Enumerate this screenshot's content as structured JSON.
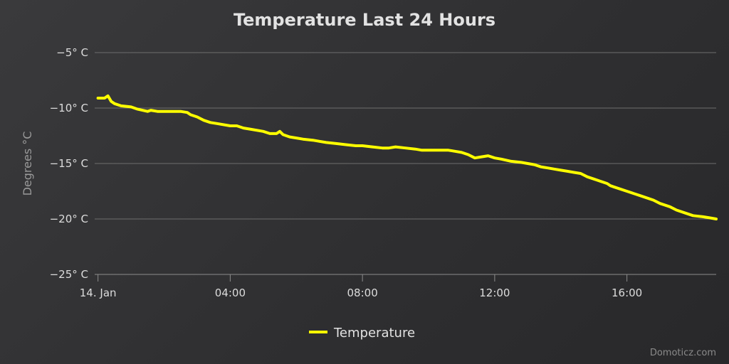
{
  "chart_data": {
    "type": "line",
    "title": "Temperature Last 24 Hours",
    "ylabel": "Degrees °C",
    "xlabel": "",
    "ylim": [
      -25,
      -5
    ],
    "yticks": [
      {
        "value": -5,
        "label": "−5° C"
      },
      {
        "value": -10,
        "label": "−10° C"
      },
      {
        "value": -15,
        "label": "−15° C"
      },
      {
        "value": -20,
        "label": "−20° C"
      },
      {
        "value": -25,
        "label": "−25° C"
      }
    ],
    "xlim_hours": [
      -0.1,
      18.7
    ],
    "xticks": [
      {
        "hour": 0,
        "label": "14. Jan"
      },
      {
        "hour": 4,
        "label": "04:00"
      },
      {
        "hour": 8,
        "label": "08:00"
      },
      {
        "hour": 12,
        "label": "12:00"
      },
      {
        "hour": 16,
        "label": "16:00"
      }
    ],
    "grid": true,
    "legend": "bottom-center",
    "series": [
      {
        "name": "Temperature",
        "color": "#ffff00",
        "x_hours": [
          0.0,
          0.2,
          0.3,
          0.4,
          0.5,
          0.7,
          1.0,
          1.2,
          1.5,
          1.6,
          1.8,
          2.0,
          2.2,
          2.5,
          2.7,
          2.8,
          3.0,
          3.2,
          3.4,
          3.6,
          4.0,
          4.2,
          4.4,
          4.6,
          5.0,
          5.2,
          5.4,
          5.5,
          5.6,
          5.7,
          5.8,
          6.0,
          6.2,
          6.5,
          6.7,
          6.9,
          7.2,
          7.5,
          7.8,
          8.0,
          8.3,
          8.6,
          8.8,
          9.0,
          9.3,
          9.6,
          9.8,
          10.2,
          10.6,
          10.8,
          11.0,
          11.2,
          11.4,
          11.6,
          11.8,
          12.0,
          12.2,
          12.5,
          12.8,
          13.0,
          13.2,
          13.4,
          13.6,
          13.8,
          14.0,
          14.2,
          14.4,
          14.6,
          14.8,
          15.0,
          15.2,
          15.4,
          15.5,
          15.6,
          16.0,
          16.4,
          16.8,
          17.0,
          17.3,
          17.5,
          17.8,
          18.0,
          18.3,
          18.5,
          18.7
        ],
        "values": [
          -9.1,
          -9.1,
          -8.9,
          -9.4,
          -9.6,
          -9.8,
          -9.9,
          -10.1,
          -10.3,
          -10.2,
          -10.3,
          -10.3,
          -10.3,
          -10.3,
          -10.4,
          -10.6,
          -10.8,
          -11.1,
          -11.3,
          -11.4,
          -11.6,
          -11.6,
          -11.8,
          -11.9,
          -12.1,
          -12.3,
          -12.3,
          -12.1,
          -12.4,
          -12.5,
          -12.6,
          -12.7,
          -12.8,
          -12.9,
          -13.0,
          -13.1,
          -13.2,
          -13.3,
          -13.4,
          -13.4,
          -13.5,
          -13.6,
          -13.6,
          -13.5,
          -13.6,
          -13.7,
          -13.8,
          -13.8,
          -13.8,
          -13.9,
          -14.0,
          -14.2,
          -14.5,
          -14.4,
          -14.3,
          -14.5,
          -14.6,
          -14.8,
          -14.9,
          -15.0,
          -15.1,
          -15.3,
          -15.4,
          -15.5,
          -15.6,
          -15.7,
          -15.8,
          -15.9,
          -16.2,
          -16.4,
          -16.6,
          -16.8,
          -17.0,
          -17.1,
          -17.5,
          -17.9,
          -18.3,
          -18.6,
          -18.9,
          -19.2,
          -19.5,
          -19.7,
          -19.8,
          -19.9,
          -20.0
        ]
      }
    ]
  },
  "credit": "Domoticz.com"
}
